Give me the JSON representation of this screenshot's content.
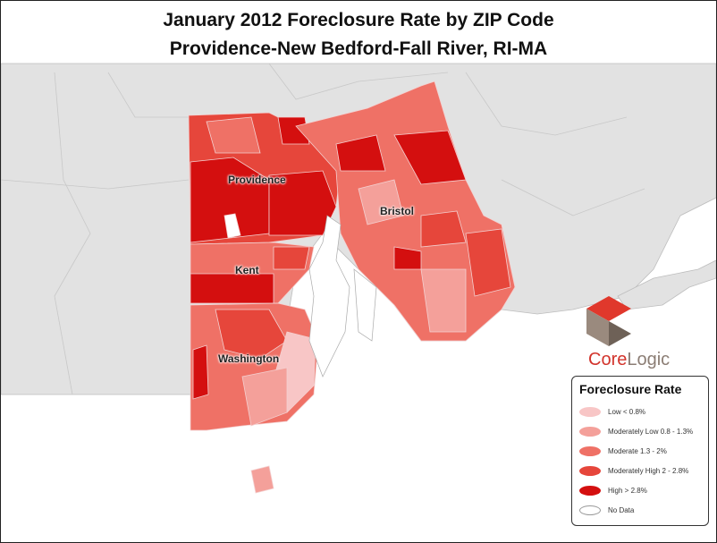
{
  "title": "January 2012 Foreclosure Rate by ZIP Code",
  "subtitle": "Providence-New Bedford-Fall River, RI-MA",
  "counties": [
    "Providence",
    "Bristol",
    "Kent",
    "Washington"
  ],
  "logo": {
    "part1": "Core",
    "part2": "Logic"
  },
  "legend": {
    "title": "Foreclosure Rate",
    "items": [
      {
        "label": "Low  < 0.8%",
        "color": "#f8c6c6"
      },
      {
        "label": "Moderately Low  0.8 - 1.3%",
        "color": "#f4a09a"
      },
      {
        "label": "Moderate  1.3 - 2%",
        "color": "#ef7166"
      },
      {
        "label": "Moderately High  2 - 2.8%",
        "color": "#e6463b"
      },
      {
        "label": "High  > 2.8%",
        "color": "#d40f0f"
      },
      {
        "label": "No Data",
        "color": "#ffffff"
      }
    ]
  }
}
